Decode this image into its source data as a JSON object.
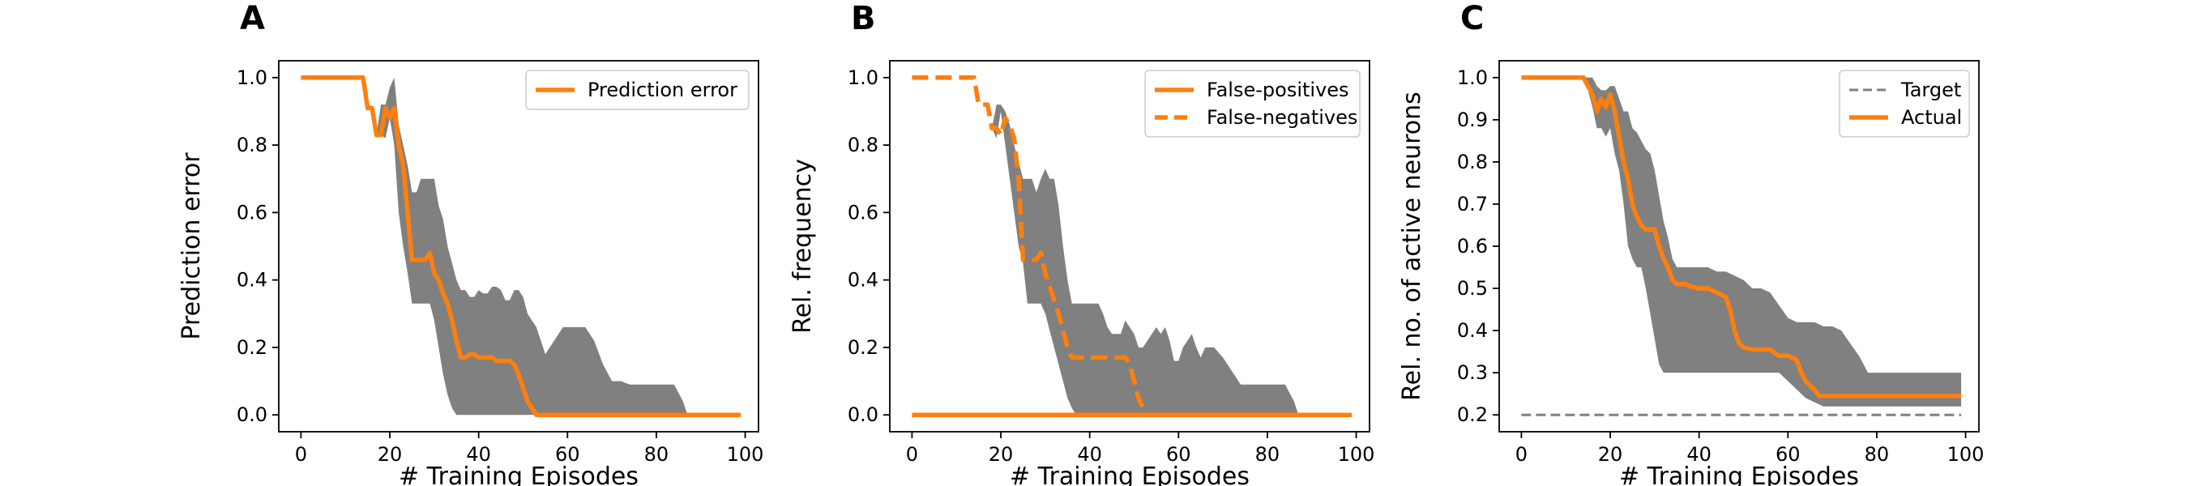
{
  "chart_data": [
    {
      "panel_label": "A",
      "type": "line",
      "xlabel": "# Training Episodes",
      "ylabel": "Prediction error",
      "xlim": [
        -5,
        103
      ],
      "ylim": [
        -0.05,
        1.05
      ],
      "xticks": [
        0,
        20,
        40,
        60,
        80,
        100
      ],
      "yticks": [
        0.0,
        0.2,
        0.4,
        0.6,
        0.8,
        1.0
      ],
      "ytick_format": 1,
      "legend_position": "top-right",
      "series": [
        {
          "name": "Prediction error",
          "color": "#ff7f0e",
          "dash": "solid",
          "x": [
            0,
            14,
            15,
            16,
            17,
            18,
            19,
            20,
            21,
            22,
            23,
            24,
            25,
            26,
            27,
            28,
            29,
            30,
            31,
            32,
            33,
            34,
            35,
            36,
            37,
            38,
            39,
            40,
            41,
            42,
            43,
            44,
            45,
            46,
            47,
            48,
            49,
            50,
            51,
            52,
            53,
            54,
            55,
            60,
            70,
            80,
            90,
            99
          ],
          "y": [
            1.0,
            1.0,
            0.91,
            0.91,
            0.83,
            0.83,
            0.91,
            0.88,
            0.91,
            0.8,
            0.74,
            0.6,
            0.46,
            0.46,
            0.46,
            0.46,
            0.48,
            0.42,
            0.4,
            0.36,
            0.33,
            0.28,
            0.22,
            0.17,
            0.17,
            0.18,
            0.18,
            0.17,
            0.17,
            0.17,
            0.17,
            0.16,
            0.16,
            0.16,
            0.16,
            0.15,
            0.12,
            0.08,
            0.04,
            0.02,
            0.0,
            0.0,
            0.0,
            0.0,
            0.0,
            0.0,
            0.0,
            0.0
          ]
        }
      ],
      "bands": [
        {
          "color": "#808080",
          "x": [
            0,
            14,
            15,
            16,
            17,
            18,
            19,
            20,
            21,
            22,
            23,
            24,
            25,
            26,
            27,
            28,
            29,
            30,
            31,
            32,
            33,
            34,
            35,
            36,
            37,
            38,
            39,
            40,
            41,
            42,
            43,
            44,
            45,
            46,
            47,
            48,
            49,
            50,
            51,
            52,
            53,
            54,
            55,
            56,
            57,
            58,
            59,
            60,
            62,
            64,
            66,
            68,
            70,
            72,
            74,
            76,
            78,
            80,
            82,
            84,
            86,
            87,
            99
          ],
          "lower": [
            1.0,
            1.0,
            0.91,
            0.91,
            0.83,
            0.83,
            0.82,
            0.88,
            0.8,
            0.6,
            0.5,
            0.42,
            0.33,
            0.33,
            0.33,
            0.33,
            0.33,
            0.28,
            0.2,
            0.12,
            0.06,
            0.02,
            0.0,
            0.0,
            0.0,
            0.0,
            0.0,
            0.0,
            0.0,
            0.0,
            0.0,
            0.0,
            0.0,
            0.0,
            0.0,
            0.0,
            0.0,
            0.0,
            0.0,
            0.0,
            0.0,
            0.0,
            0.0,
            0.0,
            0.0,
            0.0,
            0.0,
            0.0,
            0.0,
            0.0,
            0.0,
            0.0,
            0.0,
            0.0,
            0.0,
            0.0,
            0.0,
            0.0,
            0.0,
            0.0,
            0.0,
            0.0,
            0.0
          ],
          "upper": [
            1.0,
            1.0,
            0.91,
            0.91,
            0.83,
            0.92,
            0.92,
            0.97,
            1.0,
            0.86,
            0.8,
            0.74,
            0.66,
            0.66,
            0.7,
            0.7,
            0.7,
            0.7,
            0.62,
            0.58,
            0.5,
            0.45,
            0.4,
            0.37,
            0.37,
            0.35,
            0.35,
            0.37,
            0.36,
            0.36,
            0.38,
            0.38,
            0.37,
            0.34,
            0.34,
            0.37,
            0.37,
            0.35,
            0.3,
            0.28,
            0.26,
            0.22,
            0.18,
            0.2,
            0.22,
            0.24,
            0.26,
            0.26,
            0.26,
            0.26,
            0.22,
            0.15,
            0.1,
            0.1,
            0.09,
            0.09,
            0.09,
            0.09,
            0.09,
            0.09,
            0.04,
            0.0,
            0.0
          ]
        }
      ]
    },
    {
      "panel_label": "B",
      "type": "line",
      "xlabel": "# Training Episodes",
      "ylabel": "Rel. frequency",
      "xlim": [
        -5,
        103
      ],
      "ylim": [
        -0.05,
        1.05
      ],
      "xticks": [
        0,
        20,
        40,
        60,
        80,
        100
      ],
      "yticks": [
        0.0,
        0.2,
        0.4,
        0.6,
        0.8,
        1.0
      ],
      "ytick_format": 1,
      "legend_position": "top-right",
      "series": [
        {
          "name": "False-positives",
          "color": "#ff7f0e",
          "dash": "solid",
          "x": [
            0,
            99
          ],
          "y": [
            0.0,
            0.0
          ]
        },
        {
          "name": "False-negatives",
          "color": "#ff7f0e",
          "dash": "dashed",
          "x": [
            0,
            14,
            15,
            16,
            17,
            18,
            19,
            20,
            21,
            22,
            23,
            24,
            25,
            26,
            27,
            28,
            29,
            30,
            31,
            32,
            33,
            34,
            35,
            36,
            38,
            40,
            45,
            48,
            49,
            50,
            51,
            52,
            53
          ],
          "y": [
            1.0,
            1.0,
            0.92,
            0.92,
            0.92,
            0.85,
            0.85,
            0.83,
            0.88,
            0.86,
            0.82,
            0.7,
            0.46,
            0.46,
            0.46,
            0.46,
            0.48,
            0.42,
            0.38,
            0.34,
            0.3,
            0.25,
            0.2,
            0.17,
            0.17,
            0.17,
            0.17,
            0.17,
            0.15,
            0.1,
            0.05,
            0.02,
            0.0
          ]
        }
      ],
      "bands": [
        {
          "color": "#808080",
          "x": [
            18,
            19,
            20,
            21,
            22,
            23,
            24,
            25,
            26,
            27,
            28,
            29,
            30,
            31,
            32,
            33,
            34,
            35,
            36,
            37,
            38,
            39,
            40,
            41,
            42,
            43,
            44,
            45,
            46,
            47,
            48,
            49,
            50,
            51,
            52,
            53,
            54,
            55,
            56,
            57,
            58,
            59,
            60,
            61,
            62,
            63,
            64,
            65,
            66,
            68,
            70,
            72,
            74,
            76,
            78,
            80,
            82,
            84,
            86,
            87,
            99
          ],
          "lower": [
            0.85,
            0.82,
            0.9,
            0.8,
            0.7,
            0.6,
            0.5,
            0.45,
            0.33,
            0.33,
            0.33,
            0.33,
            0.3,
            0.25,
            0.2,
            0.15,
            0.1,
            0.05,
            0.02,
            0.0,
            0.0,
            0.0,
            0.0,
            0.0,
            0.0,
            0.0,
            0.0,
            0.0,
            0.0,
            0.0,
            0.0,
            0.0,
            0.0,
            0.0,
            0.0,
            0.0,
            0.0,
            0.0,
            0.0,
            0.0,
            0.0,
            0.0,
            0.0,
            0.0,
            0.0,
            0.0,
            0.0,
            0.0,
            0.0,
            0.0,
            0.0,
            0.0,
            0.0,
            0.0,
            0.0,
            0.0,
            0.0,
            0.0,
            0.0,
            0.0,
            0.0
          ],
          "upper": [
            0.85,
            0.92,
            0.92,
            0.9,
            0.86,
            0.8,
            0.75,
            0.7,
            0.7,
            0.7,
            0.66,
            0.7,
            0.73,
            0.7,
            0.7,
            0.62,
            0.5,
            0.4,
            0.33,
            0.33,
            0.33,
            0.33,
            0.33,
            0.33,
            0.33,
            0.3,
            0.26,
            0.24,
            0.24,
            0.24,
            0.28,
            0.26,
            0.24,
            0.2,
            0.2,
            0.22,
            0.24,
            0.26,
            0.24,
            0.26,
            0.22,
            0.16,
            0.16,
            0.2,
            0.22,
            0.24,
            0.2,
            0.17,
            0.2,
            0.2,
            0.17,
            0.13,
            0.09,
            0.09,
            0.09,
            0.09,
            0.09,
            0.09,
            0.04,
            0.0,
            0.0
          ]
        }
      ]
    },
    {
      "panel_label": "C",
      "type": "line",
      "xlabel": "# Training Episodes",
      "ylabel": "Rel. no. of active neurons",
      "xlim": [
        -5,
        103
      ],
      "ylim": [
        0.16,
        1.04
      ],
      "xticks": [
        0,
        20,
        40,
        60,
        80,
        100
      ],
      "yticks": [
        0.2,
        0.3,
        0.4,
        0.5,
        0.6,
        0.7,
        0.8,
        0.9,
        1.0
      ],
      "ytick_format": 1,
      "legend_position": "top-right",
      "series": [
        {
          "name": "Target",
          "color": "#808080",
          "dash": "dashed-thin",
          "x": [
            0,
            99
          ],
          "y": [
            0.2,
            0.2
          ]
        },
        {
          "name": "Actual",
          "color": "#ff7f0e",
          "dash": "solid",
          "x": [
            0,
            14,
            15,
            16,
            17,
            18,
            19,
            20,
            21,
            22,
            23,
            24,
            25,
            26,
            27,
            28,
            29,
            30,
            31,
            32,
            33,
            34,
            35,
            36,
            37,
            38,
            40,
            42,
            44,
            46,
            47,
            48,
            49,
            50,
            52,
            54,
            56,
            58,
            60,
            61,
            62,
            63,
            64,
            65,
            66,
            67,
            70,
            80,
            90,
            99
          ],
          "y": [
            1.0,
            1.0,
            0.98,
            0.96,
            0.92,
            0.95,
            0.93,
            0.96,
            0.92,
            0.86,
            0.8,
            0.76,
            0.7,
            0.67,
            0.65,
            0.64,
            0.64,
            0.64,
            0.6,
            0.57,
            0.55,
            0.52,
            0.51,
            0.51,
            0.51,
            0.505,
            0.5,
            0.5,
            0.49,
            0.48,
            0.45,
            0.4,
            0.37,
            0.36,
            0.355,
            0.355,
            0.355,
            0.34,
            0.34,
            0.335,
            0.33,
            0.3,
            0.28,
            0.27,
            0.26,
            0.245,
            0.245,
            0.245,
            0.245,
            0.245
          ]
        }
      ],
      "bands": [
        {
          "color": "#808080",
          "x": [
            0,
            14,
            15,
            16,
            17,
            18,
            19,
            20,
            21,
            22,
            23,
            24,
            25,
            26,
            27,
            28,
            29,
            30,
            31,
            32,
            33,
            34,
            35,
            36,
            37,
            38,
            40,
            42,
            44,
            46,
            48,
            50,
            52,
            54,
            56,
            58,
            60,
            62,
            64,
            66,
            68,
            70,
            72,
            74,
            76,
            78,
            80,
            82,
            84,
            86,
            88,
            90,
            92,
            94,
            96,
            99
          ],
          "lower": [
            1.0,
            1.0,
            0.97,
            0.93,
            0.88,
            0.88,
            0.86,
            0.88,
            0.82,
            0.78,
            0.7,
            0.6,
            0.57,
            0.55,
            0.55,
            0.5,
            0.44,
            0.38,
            0.32,
            0.3,
            0.3,
            0.3,
            0.3,
            0.3,
            0.3,
            0.3,
            0.3,
            0.3,
            0.3,
            0.3,
            0.3,
            0.3,
            0.3,
            0.3,
            0.3,
            0.3,
            0.28,
            0.26,
            0.24,
            0.23,
            0.22,
            0.22,
            0.22,
            0.22,
            0.22,
            0.22,
            0.22,
            0.22,
            0.22,
            0.22,
            0.22,
            0.22,
            0.22,
            0.22,
            0.22,
            0.22
          ],
          "upper": [
            1.0,
            1.0,
            1.0,
            1.0,
            0.98,
            0.97,
            0.97,
            0.98,
            0.98,
            0.95,
            0.92,
            0.92,
            0.88,
            0.87,
            0.85,
            0.83,
            0.82,
            0.78,
            0.72,
            0.66,
            0.62,
            0.57,
            0.55,
            0.55,
            0.55,
            0.55,
            0.55,
            0.55,
            0.54,
            0.54,
            0.53,
            0.52,
            0.5,
            0.5,
            0.49,
            0.46,
            0.43,
            0.42,
            0.42,
            0.42,
            0.41,
            0.41,
            0.4,
            0.37,
            0.34,
            0.3,
            0.3,
            0.3,
            0.3,
            0.3,
            0.3,
            0.3,
            0.3,
            0.3,
            0.3,
            0.3
          ]
        }
      ]
    }
  ]
}
